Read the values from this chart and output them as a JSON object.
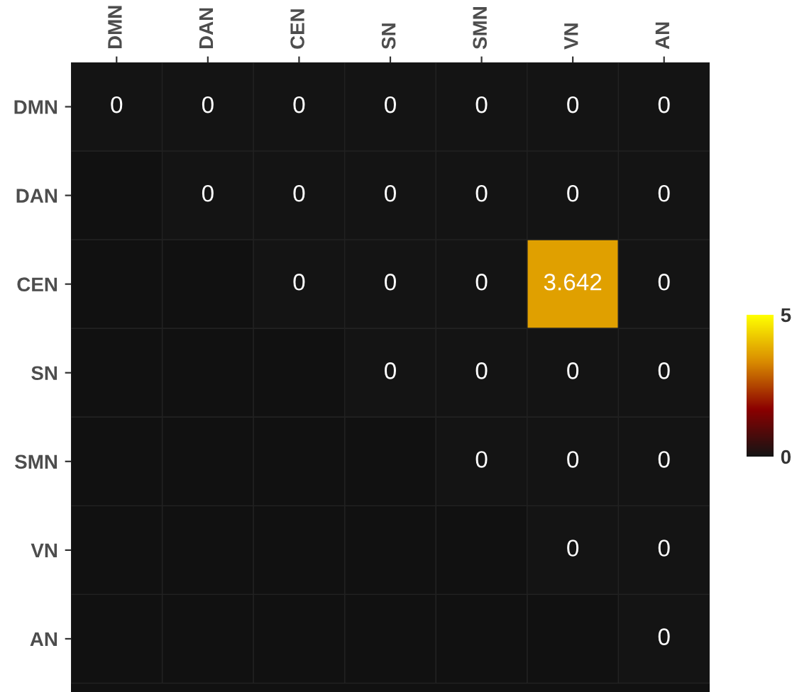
{
  "chart_data": {
    "type": "heatmap",
    "categories": [
      "DMN",
      "DAN",
      "CEN",
      "SN",
      "SMN",
      "VN",
      "AN"
    ],
    "y_categories": [
      "DMN",
      "DAN",
      "CEN",
      "SN",
      "SMN",
      "VN",
      "AN"
    ],
    "cells": [
      [
        0,
        0,
        0,
        0,
        0,
        0,
        0
      ],
      [
        null,
        0,
        0,
        0,
        0,
        0,
        0
      ],
      [
        null,
        null,
        0,
        0,
        0,
        3.642,
        0
      ],
      [
        null,
        null,
        null,
        0,
        0,
        0,
        0
      ],
      [
        null,
        null,
        null,
        null,
        0,
        0,
        0
      ],
      [
        null,
        null,
        null,
        null,
        null,
        0,
        0
      ],
      [
        null,
        null,
        null,
        null,
        null,
        null,
        0
      ]
    ],
    "clim": [
      0,
      5
    ],
    "cticks": [
      0,
      5
    ],
    "data_labels": true
  }
}
